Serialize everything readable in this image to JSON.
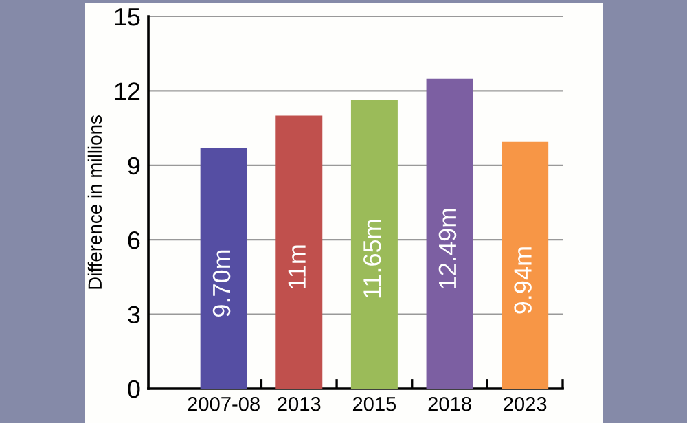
{
  "chart_data": {
    "type": "bar",
    "ylabel": "Difference in millions",
    "categories": [
      "2007-08",
      "2013",
      "2015",
      "2018",
      "2023"
    ],
    "values": [
      9.7,
      11,
      11.65,
      12.49,
      9.94
    ],
    "colors": [
      "#554ea3",
      "#c0504d",
      "#9bbb59",
      "#7c5fa2",
      "#f79646"
    ],
    "value_labels": [
      "9.70m",
      "11m",
      "11.65m",
      "12.49m",
      "9.94m"
    ],
    "ylim": [
      0,
      15
    ],
    "yticks": [
      0,
      3,
      6,
      9,
      12,
      15
    ],
    "grid": "y"
  }
}
